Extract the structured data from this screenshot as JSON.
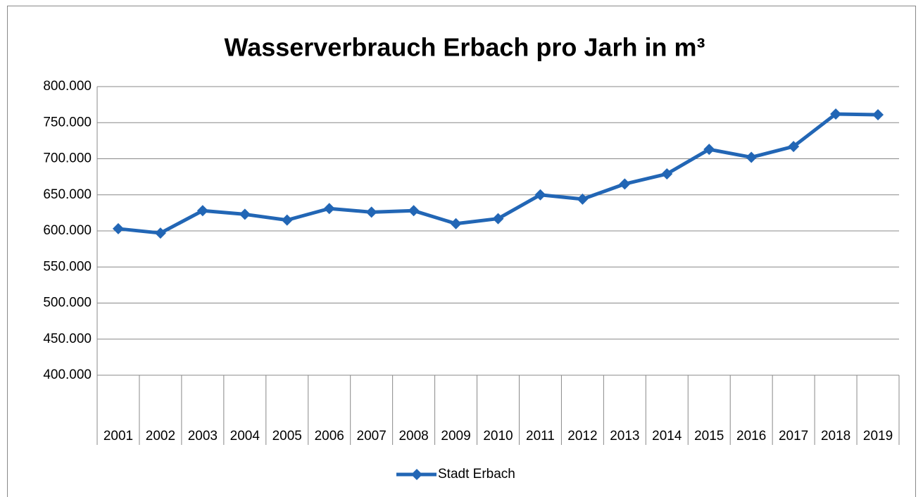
{
  "chart_data": {
    "type": "line",
    "title": "Wasserverbrauch Erbach pro Jarh in m³",
    "categories": [
      "2001",
      "2002",
      "2003",
      "2004",
      "2005",
      "2006",
      "2007",
      "2008",
      "2009",
      "2010",
      "2011",
      "2012",
      "2013",
      "2014",
      "2015",
      "2016",
      "2017",
      "2018",
      "2019"
    ],
    "series": [
      {
        "name": "Stadt Erbach",
        "color": "#2266b5",
        "values": [
          603000,
          597000,
          628000,
          623000,
          615000,
          631000,
          626000,
          628000,
          610000,
          617000,
          650000,
          644000,
          665000,
          679000,
          713000,
          702000,
          717000,
          762000,
          761000
        ]
      }
    ],
    "ylim": [
      400000,
      800000
    ],
    "yticks": [
      {
        "value": 400000,
        "label": "400.000"
      },
      {
        "value": 450000,
        "label": "450.000"
      },
      {
        "value": 500000,
        "label": "500.000"
      },
      {
        "value": 550000,
        "label": "550.000"
      },
      {
        "value": 600000,
        "label": "600.000"
      },
      {
        "value": 650000,
        "label": "650.000"
      },
      {
        "value": 700000,
        "label": "700.000"
      },
      {
        "value": 750000,
        "label": "750.000"
      },
      {
        "value": 800000,
        "label": "800.000"
      }
    ],
    "grid": true,
    "legend": "bottom"
  }
}
